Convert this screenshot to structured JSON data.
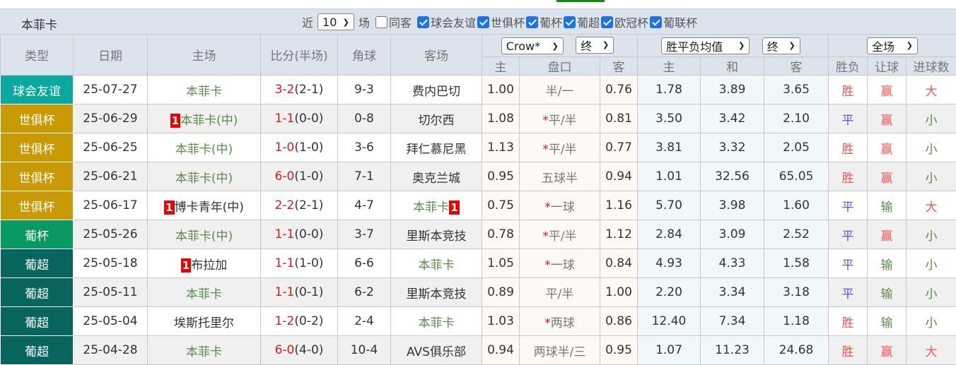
{
  "team": "本菲卡",
  "filters": {
    "prefix": "近",
    "count": "10",
    "suffix": "场",
    "same_away": "同客",
    "same_away_checked": false,
    "competitions": [
      {
        "label": "球会友谊",
        "checked": true
      },
      {
        "label": "世俱杯",
        "checked": true
      },
      {
        "label": "葡杯",
        "checked": true
      },
      {
        "label": "葡超",
        "checked": true
      },
      {
        "label": "欧冠杯",
        "checked": true
      },
      {
        "label": "葡联杯",
        "checked": true
      }
    ]
  },
  "header": {
    "type": "类型",
    "date": "日期",
    "home": "主场",
    "score": "比分(半场)",
    "corner": "角球",
    "away": "客场",
    "ah_company": "Crow*",
    "ah_time": "终",
    "eu_company": "胜平负均值",
    "eu_time": "终",
    "period": "全场",
    "ah_home": "主",
    "ah_line": "盘口",
    "ah_away": "客",
    "eu_home": "主",
    "eu_draw": "和",
    "eu_away": "客",
    "res": "胜负",
    "hcp": "让球",
    "goals": "进球数"
  },
  "colors": {
    "球会友谊": "#0aa89e",
    "世俱杯": "#c89a06",
    "葡杯": "#099a63",
    "葡超": "#07655e"
  },
  "rows": [
    {
      "type": "球会友谊",
      "date": "25-07-27",
      "home": "本菲卡",
      "home_badge": "",
      "home_green": true,
      "score": "3-2",
      "half": "(2-1)",
      "corner": "9-3",
      "away": "费内巴切",
      "away_badge": "",
      "away_green": false,
      "ah_h": "1.00",
      "ah_star": "",
      "ah_line": "半/一",
      "ah_a": "0.76",
      "eu_h": "1.78",
      "eu_d": "3.89",
      "eu_a": "3.65",
      "res": "胜",
      "hcp": "赢",
      "goals": "大"
    },
    {
      "type": "世俱杯",
      "date": "25-06-29",
      "home": "本菲卡(中)",
      "home_badge": "1",
      "home_green": true,
      "score": "1-1",
      "half": "(0-0)",
      "corner": "0-8",
      "away": "切尔西",
      "away_badge": "",
      "away_green": false,
      "ah_h": "1.08",
      "ah_star": "*",
      "ah_line": "平/半",
      "ah_a": "0.81",
      "eu_h": "3.50",
      "eu_d": "3.42",
      "eu_a": "2.10",
      "res": "平",
      "hcp": "赢",
      "goals": "小"
    },
    {
      "type": "世俱杯",
      "date": "25-06-25",
      "home": "本菲卡(中)",
      "home_badge": "",
      "home_green": true,
      "score": "1-0",
      "half": "(1-0)",
      "corner": "3-6",
      "away": "拜仁慕尼黑",
      "away_badge": "",
      "away_green": false,
      "ah_h": "1.13",
      "ah_star": "*",
      "ah_line": "平/半",
      "ah_a": "0.77",
      "eu_h": "3.81",
      "eu_d": "3.32",
      "eu_a": "2.05",
      "res": "胜",
      "hcp": "赢",
      "goals": "小"
    },
    {
      "type": "世俱杯",
      "date": "25-06-21",
      "home": "本菲卡(中)",
      "home_badge": "",
      "home_green": true,
      "score": "6-0",
      "half": "(1-0)",
      "corner": "7-1",
      "away": "奥克兰城",
      "away_badge": "",
      "away_green": false,
      "ah_h": "0.95",
      "ah_star": "",
      "ah_line": "五球半",
      "ah_a": "0.94",
      "eu_h": "1.01",
      "eu_d": "32.56",
      "eu_a": "65.05",
      "res": "胜",
      "hcp": "赢",
      "goals": "小"
    },
    {
      "type": "世俱杯",
      "date": "25-06-17",
      "home": "博卡青年(中)",
      "home_badge": "1",
      "home_green": false,
      "score": "2-2",
      "half": "(2-1)",
      "corner": "4-7",
      "away": "本菲卡",
      "away_badge": "1",
      "away_green": true,
      "ah_h": "0.75",
      "ah_star": "*",
      "ah_line": "一球",
      "ah_a": "1.16",
      "eu_h": "5.70",
      "eu_d": "3.98",
      "eu_a": "1.60",
      "res": "平",
      "hcp": "输",
      "goals": "大"
    },
    {
      "type": "葡杯",
      "date": "25-05-26",
      "home": "本菲卡(中)",
      "home_badge": "",
      "home_green": true,
      "score": "1-1",
      "half": "(0-0)",
      "corner": "3-7",
      "away": "里斯本竞技",
      "away_badge": "",
      "away_green": false,
      "ah_h": "0.78",
      "ah_star": "*",
      "ah_line": "平/半",
      "ah_a": "1.12",
      "eu_h": "2.84",
      "eu_d": "3.09",
      "eu_a": "2.52",
      "res": "平",
      "hcp": "赢",
      "goals": "小"
    },
    {
      "type": "葡超",
      "date": "25-05-18",
      "home": "布拉加",
      "home_badge": "1",
      "home_green": false,
      "score": "1-1",
      "half": "(1-0)",
      "corner": "6-6",
      "away": "本菲卡",
      "away_badge": "",
      "away_green": true,
      "ah_h": "1.05",
      "ah_star": "*",
      "ah_line": "一球",
      "ah_a": "0.84",
      "eu_h": "4.93",
      "eu_d": "4.33",
      "eu_a": "1.58",
      "res": "平",
      "hcp": "输",
      "goals": "小"
    },
    {
      "type": "葡超",
      "date": "25-05-11",
      "home": "本菲卡",
      "home_badge": "",
      "home_green": true,
      "score": "1-1",
      "half": "(0-1)",
      "corner": "6-2",
      "away": "里斯本竞技",
      "away_badge": "",
      "away_green": false,
      "ah_h": "0.89",
      "ah_star": "",
      "ah_line": "平/半",
      "ah_a": "1.00",
      "eu_h": "2.20",
      "eu_d": "3.34",
      "eu_a": "3.18",
      "res": "平",
      "hcp": "输",
      "goals": "小"
    },
    {
      "type": "葡超",
      "date": "25-05-04",
      "home": "埃斯托里尔",
      "home_badge": "",
      "home_green": false,
      "score": "1-2",
      "half": "(0-2)",
      "corner": "2-4",
      "away": "本菲卡",
      "away_badge": "",
      "away_green": true,
      "ah_h": "1.03",
      "ah_star": "*",
      "ah_line": "两球",
      "ah_a": "0.86",
      "eu_h": "12.40",
      "eu_d": "7.34",
      "eu_a": "1.18",
      "res": "胜",
      "hcp": "输",
      "goals": "小"
    },
    {
      "type": "葡超",
      "date": "25-04-28",
      "home": "本菲卡",
      "home_badge": "",
      "home_green": true,
      "score": "6-0",
      "half": "(4-0)",
      "corner": "10-4",
      "away": "AVS俱乐部",
      "away_badge": "",
      "away_green": false,
      "ah_h": "0.94",
      "ah_star": "",
      "ah_line": "两球半/三",
      "ah_a": "0.95",
      "eu_h": "1.07",
      "eu_d": "11.23",
      "eu_a": "24.68",
      "res": "胜",
      "hcp": "赢",
      "goals": "大"
    }
  ]
}
